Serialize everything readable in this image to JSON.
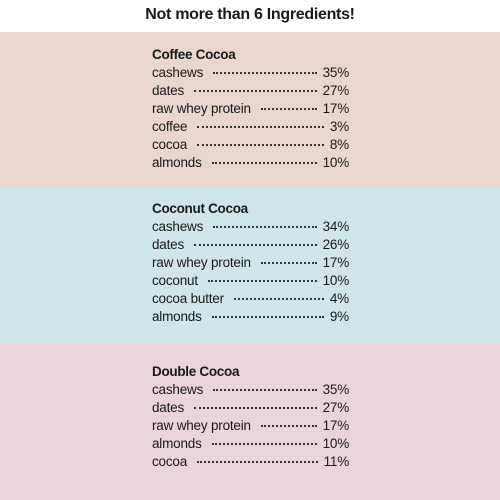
{
  "title": "Not more than 6 Ingredients!",
  "sections": [
    {
      "name": "Coffee Cocoa",
      "items": [
        {
          "ingredient": "cashews",
          "percent": "35%"
        },
        {
          "ingredient": "dates",
          "percent": "27%"
        },
        {
          "ingredient": "raw whey protein",
          "percent": "17%"
        },
        {
          "ingredient": "coffee",
          "percent": "3%"
        },
        {
          "ingredient": "cocoa",
          "percent": "8%"
        },
        {
          "ingredient": "almonds",
          "percent": "10%"
        }
      ]
    },
    {
      "name": "Coconut Cocoa",
      "items": [
        {
          "ingredient": "cashews",
          "percent": "34%"
        },
        {
          "ingredient": "dates",
          "percent": "26%"
        },
        {
          "ingredient": "raw whey protein",
          "percent": "17%"
        },
        {
          "ingredient": "coconut",
          "percent": "10%"
        },
        {
          "ingredient": "cocoa butter",
          "percent": "4%"
        },
        {
          "ingredient": "almonds",
          "percent": "9%"
        }
      ]
    },
    {
      "name": "Double Cocoa",
      "items": [
        {
          "ingredient": "cashews",
          "percent": "35%"
        },
        {
          "ingredient": "dates",
          "percent": "27%"
        },
        {
          "ingredient": "raw whey protein",
          "percent": "17%"
        },
        {
          "ingredient": "almonds",
          "percent": "10%"
        },
        {
          "ingredient": "cocoa",
          "percent": "11%"
        }
      ]
    }
  ]
}
